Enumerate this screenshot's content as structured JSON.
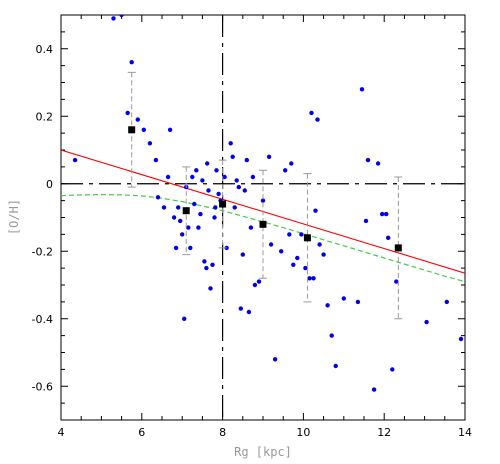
{
  "chart_data": {
    "type": "scatter",
    "xlabel": "Rg [kpc]",
    "ylabel": "[O/H]",
    "xlim": [
      4,
      14
    ],
    "ylim": [
      -0.7,
      0.5
    ],
    "x_ticks": [
      4,
      6,
      8,
      10,
      12,
      14
    ],
    "y_ticks": [
      -0.6,
      -0.4,
      -0.2,
      0,
      0.2,
      0.4
    ],
    "x_tick_labels": [
      "4",
      "6",
      "8",
      "10",
      "12",
      "14"
    ],
    "y_tick_labels": [
      "-0.6",
      "-0.4",
      "-0.2",
      "0",
      "0.2",
      "0.4"
    ],
    "grid": false,
    "reference_lines": {
      "vertical_x": 8,
      "horizontal_y": 0,
      "style": "long-dash",
      "color": "#000000"
    },
    "colors": {
      "scatter": "#0000ee",
      "binned": "#000000",
      "error_bars": "#999999",
      "linear_fit": "#ff0000",
      "model_curve": "#44cc44"
    },
    "series": [
      {
        "kind": "scatter",
        "points": [
          [
            4.35,
            0.07
          ],
          [
            5.3,
            0.49
          ],
          [
            5.5,
            0.5
          ],
          [
            5.65,
            0.21
          ],
          [
            5.75,
            0.36
          ],
          [
            5.9,
            0.19
          ],
          [
            6.05,
            0.16
          ],
          [
            6.2,
            0.12
          ],
          [
            6.35,
            0.07
          ],
          [
            6.4,
            -0.04
          ],
          [
            6.55,
            -0.07
          ],
          [
            6.65,
            0.02
          ],
          [
            6.7,
            0.16
          ],
          [
            6.8,
            -0.1
          ],
          [
            6.85,
            -0.19
          ],
          [
            6.9,
            -0.07
          ],
          [
            6.95,
            -0.11
          ],
          [
            7.0,
            -0.15
          ],
          [
            7.05,
            -0.4
          ],
          [
            7.1,
            -0.01
          ],
          [
            7.15,
            -0.13
          ],
          [
            7.2,
            -0.19
          ],
          [
            7.25,
            0.02
          ],
          [
            7.3,
            -0.06
          ],
          [
            7.35,
            0.04
          ],
          [
            7.4,
            -0.13
          ],
          [
            7.45,
            -0.09
          ],
          [
            7.5,
            0.01
          ],
          [
            7.55,
            -0.23
          ],
          [
            7.6,
            -0.25
          ],
          [
            7.62,
            0.06
          ],
          [
            7.65,
            -0.02
          ],
          [
            7.7,
            -0.31
          ],
          [
            7.75,
            -0.24
          ],
          [
            7.8,
            -0.1
          ],
          [
            7.82,
            -0.07
          ],
          [
            7.85,
            0.04
          ],
          [
            7.9,
            -0.03
          ],
          [
            7.95,
            -0.05
          ],
          [
            8.05,
            0.02
          ],
          [
            8.1,
            -0.19
          ],
          [
            8.2,
            0.12
          ],
          [
            8.25,
            0.08
          ],
          [
            8.3,
            -0.07
          ],
          [
            8.35,
            0.01
          ],
          [
            8.4,
            -0.01
          ],
          [
            8.45,
            -0.37
          ],
          [
            8.5,
            -0.21
          ],
          [
            8.55,
            -0.02
          ],
          [
            8.6,
            0.07
          ],
          [
            8.65,
            -0.38
          ],
          [
            8.7,
            -0.13
          ],
          [
            8.75,
            0.02
          ],
          [
            8.8,
            -0.3
          ],
          [
            8.9,
            -0.29
          ],
          [
            9.0,
            -0.05
          ],
          [
            9.15,
            0.08
          ],
          [
            9.2,
            -0.18
          ],
          [
            9.3,
            -0.52
          ],
          [
            9.45,
            -0.2
          ],
          [
            9.55,
            0.04
          ],
          [
            9.65,
            -0.15
          ],
          [
            9.7,
            0.06
          ],
          [
            9.75,
            -0.24
          ],
          [
            9.85,
            -0.22
          ],
          [
            9.95,
            -0.15
          ],
          [
            10.05,
            -0.25
          ],
          [
            10.15,
            -0.28
          ],
          [
            10.2,
            0.21
          ],
          [
            10.25,
            -0.28
          ],
          [
            10.3,
            -0.08
          ],
          [
            10.35,
            0.19
          ],
          [
            10.4,
            -0.18
          ],
          [
            10.5,
            -0.21
          ],
          [
            10.6,
            -0.36
          ],
          [
            10.7,
            -0.45
          ],
          [
            10.8,
            -0.54
          ],
          [
            11.0,
            -0.34
          ],
          [
            11.35,
            -0.35
          ],
          [
            11.45,
            0.28
          ],
          [
            11.55,
            -0.11
          ],
          [
            11.6,
            0.07
          ],
          [
            11.75,
            -0.61
          ],
          [
            11.85,
            0.06
          ],
          [
            11.95,
            -0.09
          ],
          [
            12.1,
            -0.16
          ],
          [
            12.2,
            -0.55
          ],
          [
            12.3,
            -0.29
          ],
          [
            13.05,
            -0.41
          ],
          [
            13.55,
            -0.35
          ],
          [
            13.9,
            -0.46
          ],
          [
            12.05,
            -0.09
          ]
        ]
      },
      {
        "kind": "binned_mean",
        "points": [
          {
            "x": 5.75,
            "y": 0.16,
            "lo": -0.01,
            "hi": 0.33
          },
          {
            "x": 7.1,
            "y": -0.08,
            "lo": -0.21,
            "hi": 0.05
          },
          {
            "x": 8.0,
            "y": -0.06,
            "lo": -0.19,
            "hi": 0.07
          },
          {
            "x": 9.0,
            "y": -0.12,
            "lo": -0.28,
            "hi": 0.04
          },
          {
            "x": 10.1,
            "y": -0.16,
            "lo": -0.35,
            "hi": 0.03
          },
          {
            "x": 12.35,
            "y": -0.19,
            "lo": -0.4,
            "hi": 0.02
          }
        ]
      },
      {
        "kind": "linear_fit",
        "points": [
          [
            4.0,
            0.1
          ],
          [
            14.0,
            -0.265
          ]
        ]
      },
      {
        "kind": "model_curve",
        "points": [
          [
            4.0,
            -0.035
          ],
          [
            4.5,
            -0.033
          ],
          [
            5.0,
            -0.032
          ],
          [
            5.5,
            -0.033
          ],
          [
            6.0,
            -0.036
          ],
          [
            6.5,
            -0.043
          ],
          [
            7.0,
            -0.053
          ],
          [
            7.5,
            -0.066
          ],
          [
            8.0,
            -0.08
          ],
          [
            8.5,
            -0.096
          ],
          [
            9.0,
            -0.113
          ],
          [
            9.5,
            -0.13
          ],
          [
            10.0,
            -0.148
          ],
          [
            10.5,
            -0.166
          ],
          [
            11.0,
            -0.184
          ],
          [
            11.5,
            -0.202
          ],
          [
            12.0,
            -0.22
          ],
          [
            12.5,
            -0.238
          ],
          [
            13.0,
            -0.256
          ],
          [
            13.5,
            -0.274
          ],
          [
            14.0,
            -0.29
          ]
        ]
      }
    ]
  }
}
